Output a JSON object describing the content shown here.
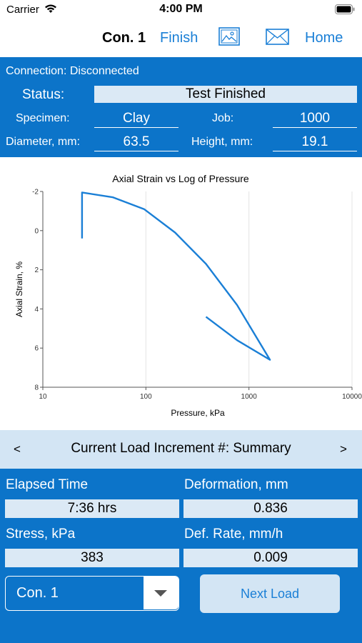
{
  "status_bar": {
    "carrier": "Carrier",
    "time": "4:00 PM"
  },
  "nav": {
    "title": "Con. 1",
    "finish_label": "Finish",
    "image_icon": "image-icon",
    "mail_icon": "mail-icon",
    "home_label": "Home"
  },
  "info": {
    "connection": "Connection: Disconnected",
    "status_label": "Status:",
    "status_value": "Test Finished",
    "specimen_label": "Specimen:",
    "specimen_value": "Clay",
    "job_label": "Job:",
    "job_value": "1000",
    "diameter_label": "Diameter, mm:",
    "diameter_value": "63.5",
    "height_label": "Height, mm:",
    "height_value": "19.1"
  },
  "chart_data": {
    "type": "line",
    "title": "Axial Strain vs Log of Pressure",
    "xlabel": "Pressure, kPa",
    "ylabel": "Axial Strain, %",
    "x_scale": "log",
    "xlim": [
      10,
      10000
    ],
    "ylim": [
      -2,
      8
    ],
    "y_inverted": true,
    "x_ticks": [
      "10",
      "100",
      "1000",
      "10000"
    ],
    "y_ticks": [
      "-2",
      "0",
      "2",
      "4",
      "6",
      "8"
    ],
    "grid": "vertical",
    "color": "#1a7fd6",
    "series": [
      {
        "x": [
          24,
          24,
          48,
          96,
          192,
          383,
          766,
          1600,
          766,
          383
        ],
        "y": [
          0.4,
          -1.95,
          -1.7,
          -1.1,
          0.1,
          1.7,
          3.8,
          6.6,
          5.6,
          4.4
        ]
      }
    ]
  },
  "increment": {
    "prev": "<",
    "title": "Current Load Increment #: Summary",
    "next": ">"
  },
  "summary": {
    "elapsed_label": "Elapsed Time",
    "elapsed_value": "7:36 hrs",
    "deformation_label": "Deformation, mm",
    "deformation_value": "0.836",
    "stress_label": "Stress, kPa",
    "stress_value": "383",
    "rate_label": "Def. Rate, mm/h",
    "rate_value": "0.009"
  },
  "controls": {
    "select_value": "Con. 1",
    "select_icon": "chevron-down-icon",
    "next_label": "Next Load"
  }
}
